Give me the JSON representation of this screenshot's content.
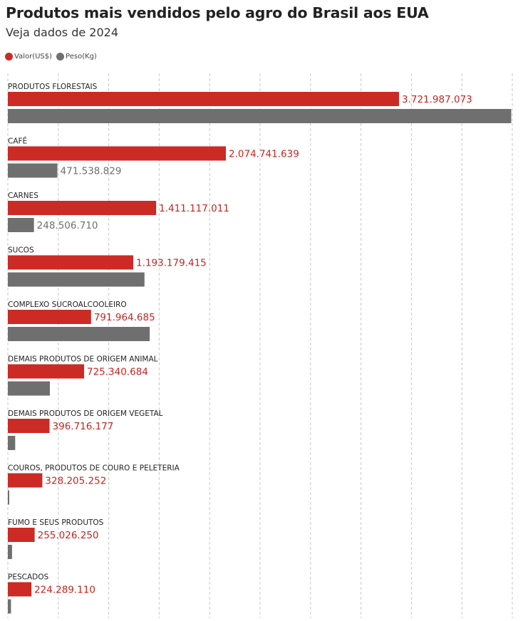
{
  "title": "Produtos mais vendidos pelo agro do Brasil aos EUA",
  "subtitle": "Veja dados de 2024",
  "legend": [
    {
      "label": "Valor(US$)",
      "color": "#cc2a25"
    },
    {
      "label": "Peso(Kg)",
      "color": "#6f6f6f"
    }
  ],
  "chart_data": {
    "type": "bar",
    "orientation": "horizontal",
    "grid": true,
    "legend_position": "top-left",
    "categories": [
      "PRODUTOS FLORESTAIS",
      "CAFÉ",
      "CARNES",
      "SUCOS",
      "COMPLEXO SUCROALCOOLEIRO",
      "DEMAIS PRODUTOS DE ORIGEM ANIMAL",
      "DEMAIS PRODUTOS DE ORIGEM VEGETAL",
      "COUROS, PRODUTOS DE COURO E PELETERIA",
      "FUMO E SEUS PRODUTOS",
      "PESCADOS"
    ],
    "xlim": [
      0,
      4800000000
    ],
    "series": [
      {
        "name": "Valor(US$)",
        "color": "#cc2a25",
        "label_color": "#c62520",
        "values": [
          3721987073,
          2074741639,
          1411117011,
          1193179415,
          791964685,
          725340684,
          396716177,
          328205252,
          255026250,
          224289110
        ],
        "labels": [
          "3.721.987.073",
          "2.074.741.639",
          "1.411.117.011",
          "1.193.179.415",
          "791.964.685",
          "725.340.684",
          "396.716.177",
          "328.205.252",
          "255.026.250",
          "224.289.110"
        ]
      },
      {
        "name": "Peso(Kg)",
        "color": "#6f6f6f",
        "label_color": "#6f6f6f",
        "values": [
          4790000000,
          471538829,
          248506710,
          1300000000,
          1350000000,
          400000000,
          70000000,
          12000000,
          40000000,
          30000000
        ],
        "labels": [
          "",
          "471.538.829",
          "248.506.710",
          "",
          "",
          "",
          "",
          "",
          "",
          ""
        ]
      }
    ]
  }
}
